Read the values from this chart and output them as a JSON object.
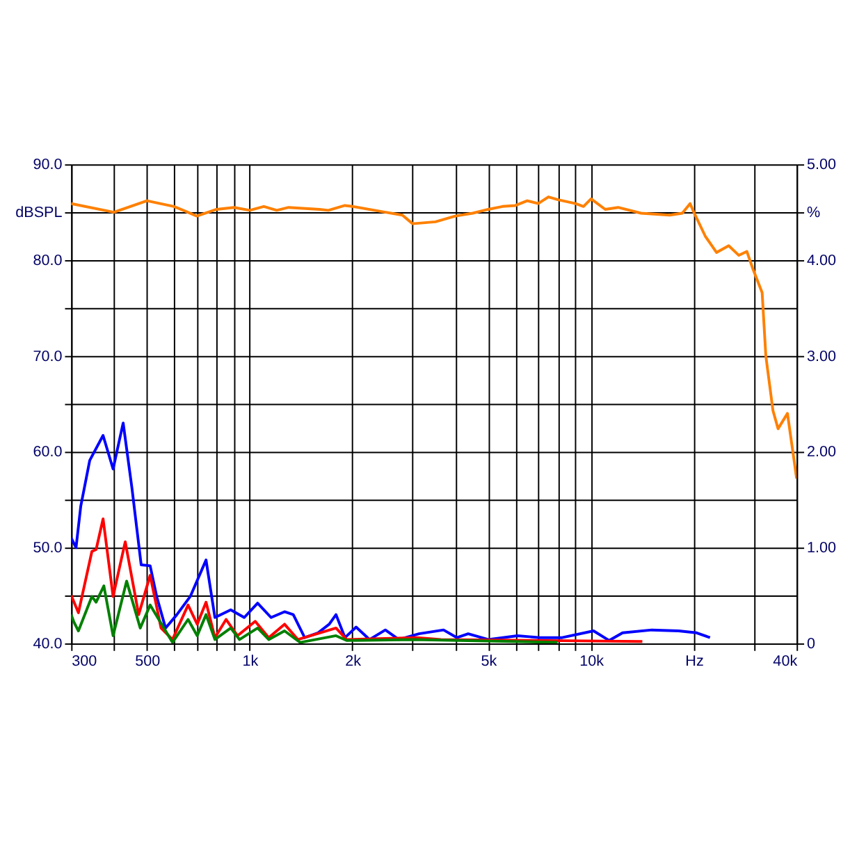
{
  "chart_data": {
    "type": "line",
    "log": "x",
    "grid": true,
    "marker": "none",
    "line_style": "solid",
    "xlim": [
      300,
      40000
    ],
    "xticks": [
      300,
      {
        "value": 400,
        "label": null
      },
      {
        "value": 500,
        "label": "500"
      },
      {
        "value": 600,
        "label": null
      },
      {
        "value": 700,
        "label": null
      },
      {
        "value": 800,
        "label": null
      },
      {
        "value": 900,
        "label": null
      },
      {
        "value": 1000,
        "label": "1k"
      },
      {
        "value": 2000,
        "label": "2k"
      },
      {
        "value": 3000,
        "label": null
      },
      {
        "value": 4000,
        "label": null
      },
      {
        "value": 5000,
        "label": "5k"
      },
      {
        "value": 6000,
        "label": null
      },
      {
        "value": 7000,
        "label": null
      },
      {
        "value": 8000,
        "label": null
      },
      {
        "value": 9000,
        "label": null
      },
      {
        "value": 10000,
        "label": "10k"
      },
      {
        "value": 20000,
        "label": "Hz"
      },
      {
        "value": 30000,
        "label": null
      },
      {
        "value": 40000,
        "label": "40k"
      }
    ],
    "ylim": [
      40,
      90
    ],
    "yticks": [
      {
        "value": 40,
        "label": "40.0"
      },
      {
        "value": 45,
        "label": null
      },
      {
        "value": 50,
        "label": "50.0"
      },
      {
        "value": 55,
        "label": null
      },
      {
        "value": 60,
        "label": "60.0"
      },
      {
        "value": 65,
        "label": null
      },
      {
        "value": 70,
        "label": "70.0"
      },
      {
        "value": 75,
        "label": null
      },
      {
        "value": 80,
        "label": "80.0"
      },
      {
        "value": 85,
        "label": "dBSPL"
      },
      {
        "value": 90,
        "label": "90.0"
      }
    ],
    "y2lim": [
      0,
      5
    ],
    "y2ticks": [
      {
        "value": 0,
        "label": "0"
      },
      {
        "value": 1,
        "label": "1.00"
      },
      {
        "value": 2,
        "label": "2.00"
      },
      {
        "value": 3,
        "label": "3.00"
      },
      {
        "value": 4,
        "label": "4.00"
      },
      {
        "value": 4.5,
        "label": "%"
      },
      {
        "value": 5,
        "label": "5.00"
      }
    ],
    "series": [
      {
        "color": "#ff8000",
        "x": [
          300,
          400,
          500,
          600,
          700,
          800,
          900,
          1000,
          1100,
          1200,
          1300,
          1600,
          1700,
          1900,
          2000,
          2500,
          2800,
          3000,
          3500,
          4000,
          4500,
          5000,
          5500,
          6000,
          6500,
          7000,
          7500,
          8000,
          9000,
          9500,
          10000,
          11000,
          12000,
          14000,
          17000,
          18500,
          19500,
          20000,
          21600,
          23300,
          25300,
          27100,
          28600,
          29700,
          31700,
          32500,
          34100,
          35300,
          37600,
          39000,
          40000
        ],
        "values": [
          85.9,
          85.0,
          86.2,
          85.6,
          84.6,
          85.3,
          85.5,
          85.2,
          85.6,
          85.2,
          85.5,
          85.3,
          85.2,
          85.7,
          85.6,
          85.0,
          84.7,
          83.8,
          84.0,
          84.6,
          84.9,
          85.3,
          85.6,
          85.7,
          86.2,
          85.9,
          86.6,
          86.3,
          85.9,
          85.6,
          86.4,
          85.3,
          85.5,
          84.9,
          84.7,
          84.9,
          85.9,
          85.0,
          82.5,
          80.8,
          81.5,
          80.5,
          80.9,
          79.2,
          76.6,
          70.0,
          64.3,
          62.4,
          64.0,
          60.0,
          57.2
        ]
      },
      {
        "color": "#0000ff",
        "axis": "y2",
        "x": [
          300,
          310,
          320,
          340,
          372,
          398,
          426,
          452,
          481,
          511,
          534,
          567,
          612,
          670,
          745,
          791,
          880,
          964,
          1055,
          1155,
          1265,
          1342,
          1449,
          1586,
          1710,
          1790,
          1902,
          2050,
          2245,
          2497,
          2734,
          3133,
          3697,
          4047,
          4365,
          4998,
          6085,
          7082,
          8227,
          10170,
          11300,
          12370,
          15060,
          18060,
          20380,
          22300
        ],
        "values": [
          1.1,
          1.0,
          1.43,
          1.91,
          2.17,
          1.82,
          2.3,
          1.62,
          0.82,
          0.81,
          0.49,
          0.16,
          0.3,
          0.49,
          0.87,
          0.27,
          0.35,
          0.27,
          0.42,
          0.27,
          0.33,
          0.3,
          0.06,
          0.11,
          0.2,
          0.3,
          0.06,
          0.17,
          0.04,
          0.14,
          0.04,
          0.1,
          0.14,
          0.06,
          0.1,
          0.04,
          0.08,
          0.06,
          0.06,
          0.13,
          0.03,
          0.11,
          0.14,
          0.13,
          0.11,
          0.06
        ]
      },
      {
        "color": "#ff0000",
        "axis": "y2",
        "x": [
          300,
          305,
          315,
          345,
          355,
          372,
          398,
          432,
          473,
          511,
          550,
          594,
          660,
          702,
          745,
          791,
          853,
          921,
          1038,
          1137,
          1265,
          1385,
          1790,
          1923,
          3083,
          3630,
          14130
        ],
        "values": [
          0.5,
          0.44,
          0.32,
          0.96,
          0.98,
          1.3,
          0.49,
          1.06,
          0.3,
          0.71,
          0.16,
          0.04,
          0.4,
          0.2,
          0.43,
          0.06,
          0.25,
          0.08,
          0.23,
          0.06,
          0.2,
          0.04,
          0.16,
          0.04,
          0.06,
          0.04,
          0.02
        ]
      },
      {
        "color": "#008000",
        "axis": "y2",
        "x": [
          300,
          305,
          315,
          345,
          355,
          374,
          398,
          436,
          478,
          511,
          594,
          660,
          702,
          745,
          791,
          880,
          934,
          1055,
          1137,
          1265,
          1405,
          1790,
          1923,
          3027,
          7983
        ],
        "values": [
          0.3,
          0.23,
          0.13,
          0.49,
          0.43,
          0.6,
          0.08,
          0.65,
          0.16,
          0.4,
          0.01,
          0.25,
          0.08,
          0.3,
          0.04,
          0.16,
          0.04,
          0.16,
          0.04,
          0.13,
          0.01,
          0.08,
          0.03,
          0.04,
          0.01
        ]
      }
    ]
  }
}
